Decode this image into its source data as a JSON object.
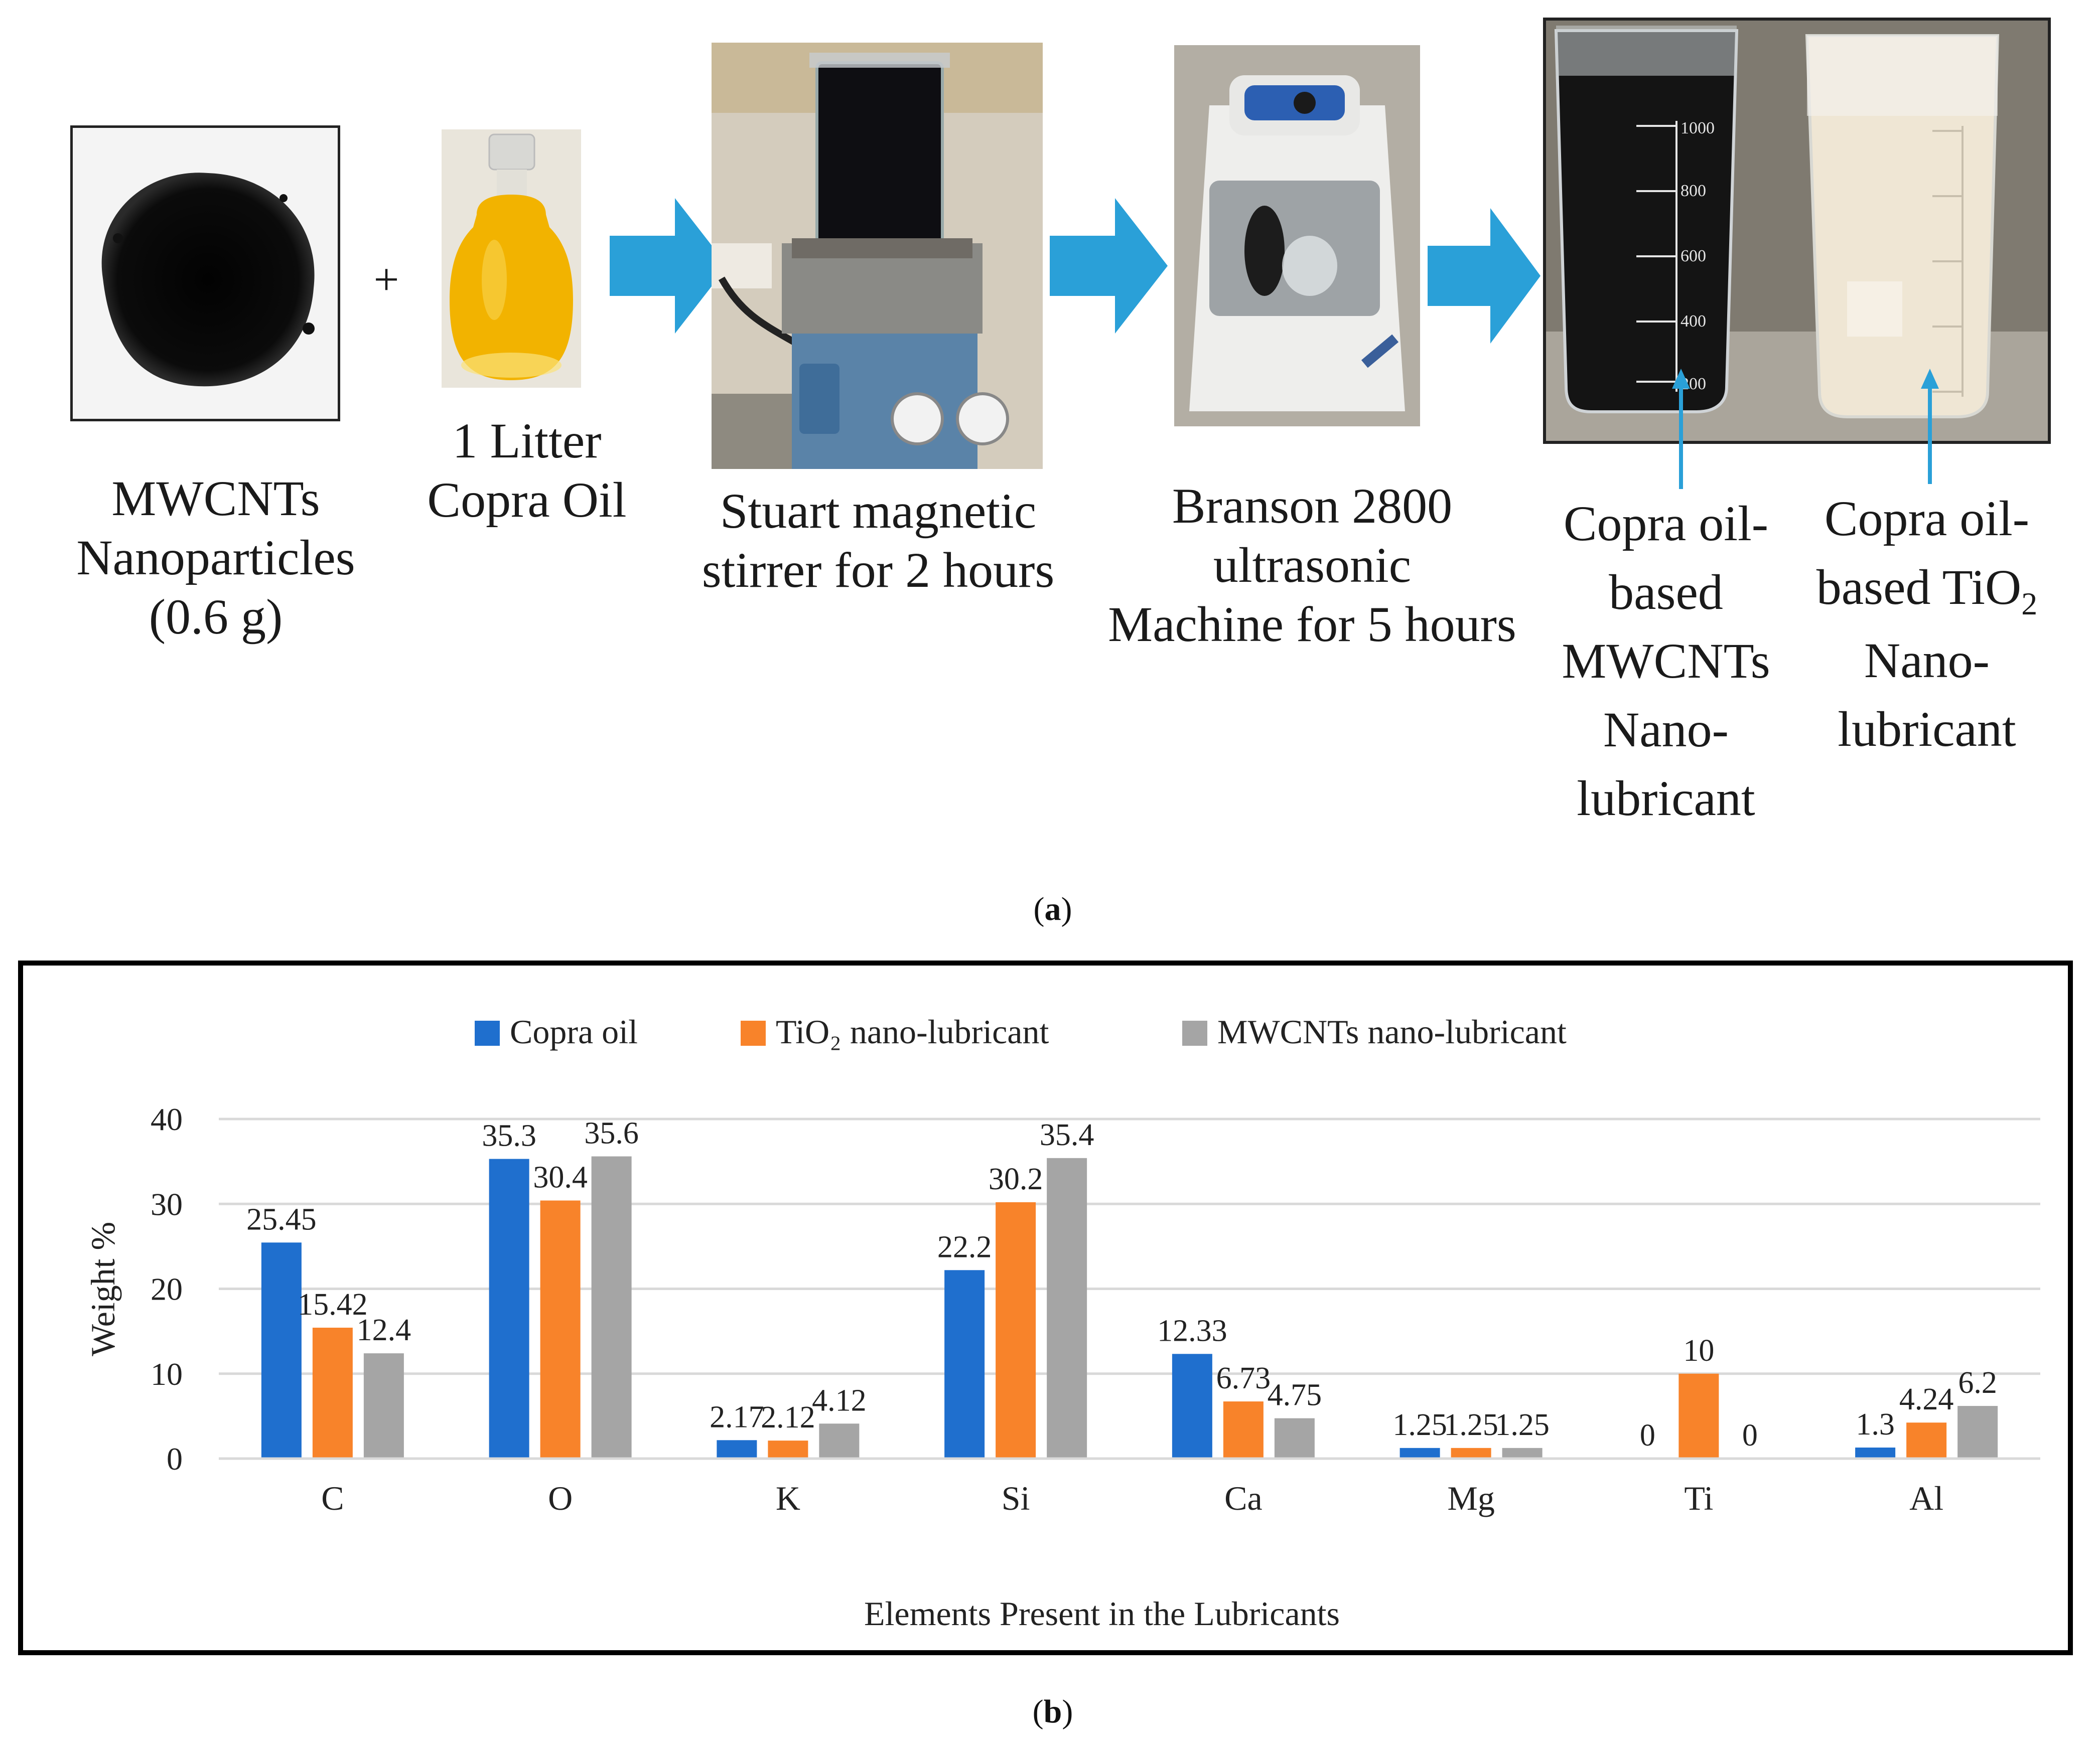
{
  "panel_a": {
    "steps": [
      {
        "id": "mwcnts",
        "lines": [
          "MWCNTs",
          "Nanoparticles",
          "(0.6 g)"
        ]
      },
      {
        "id": "oil",
        "lines": [
          "1 Litter",
          "Copra Oil"
        ]
      },
      {
        "id": "stirrer",
        "lines": [
          "Stuart magnetic",
          "stirrer for 2 hours"
        ]
      },
      {
        "id": "ultrasonic",
        "lines": [
          "Branson 2800",
          "ultrasonic",
          "Machine for 5 hours"
        ]
      },
      {
        "id": "mwcnt-lub",
        "lines": [
          "Copra oil-",
          "based",
          "MWCNTs",
          "Nano-",
          "lubricant"
        ]
      },
      {
        "id": "tio2-lub",
        "lines": [
          "Copra oil-",
          "based TiO",
          "Nano-",
          "lubricant"
        ]
      }
    ],
    "plus": "+",
    "subscript_2": "2",
    "label_open": "(",
    "label_letter": "a",
    "label_close": ")",
    "beaker_marks": [
      "1000",
      "800",
      "600",
      "400",
      "200"
    ],
    "colors": {
      "arrow": "#2aa0d8",
      "oil": "#f2b300"
    }
  },
  "panel_b": {
    "label_open": "(",
    "label_letter": "b",
    "label_close": ")"
  },
  "chart_data": {
    "type": "bar",
    "title": "",
    "categories": [
      "C",
      "O",
      "K",
      "Si",
      "Ca",
      "Mg",
      "Ti",
      "Al"
    ],
    "series": [
      {
        "name": "Copra oil",
        "color": "#1f6fce",
        "values": [
          25.45,
          35.3,
          2.17,
          22.2,
          12.33,
          1.25,
          0,
          1.3
        ]
      },
      {
        "name": "TiO₂ nano-lubricant",
        "color": "#f8832a",
        "values": [
          15.42,
          30.4,
          2.12,
          30.2,
          6.73,
          1.25,
          10,
          4.24
        ]
      },
      {
        "name": "MWCNTs nano-lubricant",
        "color": "#a5a5a5",
        "values": [
          12.4,
          35.6,
          4.12,
          35.4,
          4.75,
          1.25,
          0,
          6.2
        ]
      }
    ],
    "xlabel": "Elements Present in the Lubricants",
    "ylabel": "Weight %",
    "ylim": [
      0,
      40
    ],
    "yticks": [
      0,
      10,
      20,
      30,
      40
    ],
    "grid": true,
    "legend": "top-center"
  }
}
